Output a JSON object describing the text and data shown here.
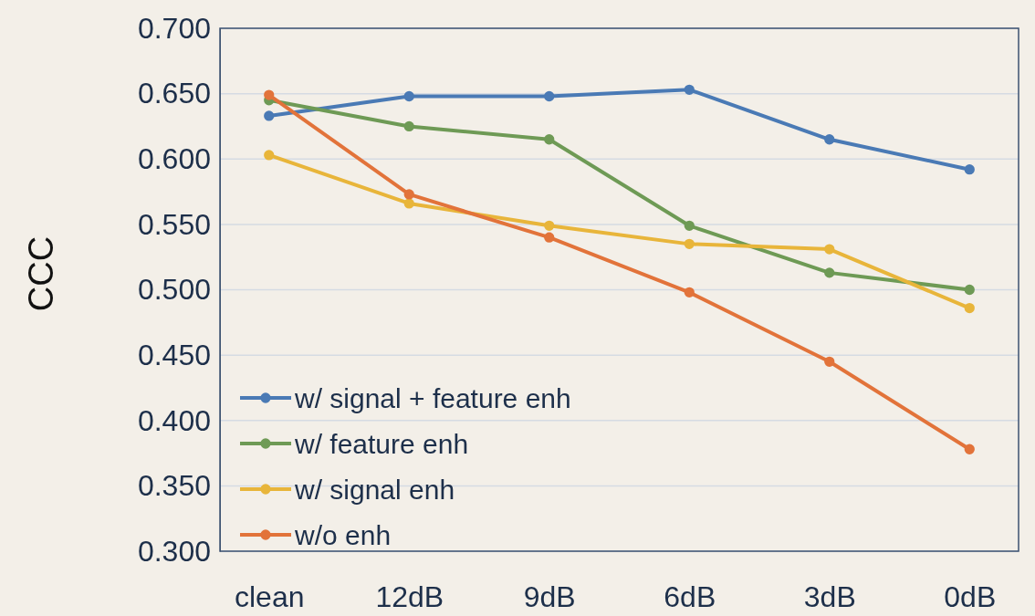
{
  "chart_data": {
    "type": "line",
    "ylabel": "CCC",
    "categories": [
      "clean",
      "12dB",
      "9dB",
      "6dB",
      "3dB",
      "0dB"
    ],
    "ylim": [
      0.3,
      0.7
    ],
    "yticks": [
      {
        "value": 0.3,
        "label": "0.300"
      },
      {
        "value": 0.35,
        "label": "0.350"
      },
      {
        "value": 0.4,
        "label": "0.400"
      },
      {
        "value": 0.45,
        "label": "0.450"
      },
      {
        "value": 0.5,
        "label": "0.500"
      },
      {
        "value": 0.55,
        "label": "0.550"
      },
      {
        "value": 0.6,
        "label": "0.600"
      },
      {
        "value": 0.65,
        "label": "0.650"
      },
      {
        "value": 0.7,
        "label": "0.700"
      }
    ],
    "grid": "y",
    "legend": "bottom left",
    "marker": "circle",
    "line_style": "solid",
    "series": [
      {
        "name": "w/ signal + feature enh",
        "color": "#4a7ab5",
        "values": [
          0.633,
          0.648,
          0.648,
          0.653,
          0.615,
          0.592
        ]
      },
      {
        "name": "w/ feature enh",
        "color": "#6e9a55",
        "values": [
          0.645,
          0.625,
          0.615,
          0.549,
          0.513,
          0.5
        ]
      },
      {
        "name": "w/ signal enh",
        "color": "#e8b53a",
        "values": [
          0.603,
          0.566,
          0.549,
          0.535,
          0.531,
          0.486
        ]
      },
      {
        "name": "w/o enh",
        "color": "#e2733a",
        "values": [
          0.649,
          0.573,
          0.54,
          0.498,
          0.445,
          0.378
        ]
      }
    ]
  }
}
